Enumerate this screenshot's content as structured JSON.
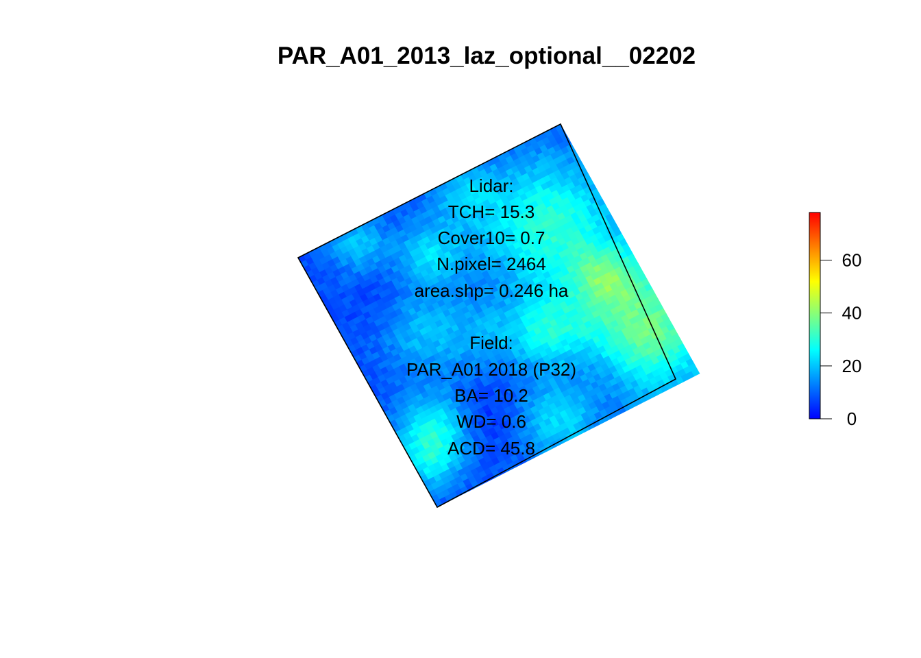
{
  "chart_data": {
    "type": "heatmap",
    "title": "PAR_A01_2013_laz_optional__02202",
    "annotation": {
      "lidar_lines": [
        "Lidar:",
        "TCH= 15.3",
        "Cover10= 0.7",
        "N.pixel= 2464",
        "area.shp= 0.246 ha"
      ],
      "field_lines": [
        "Field:",
        "PAR_A01 2018 (P32)",
        "BA= 10.2",
        "WD= 0.6",
        "ACD= 45.8"
      ]
    },
    "colorbar": {
      "range": [
        0,
        78
      ],
      "ticks": [
        0,
        20,
        40,
        60
      ],
      "tick_labels": [
        "0",
        "20",
        "40",
        "60"
      ],
      "colors": [
        "#0000ff",
        "#0080ff",
        "#00ffff",
        "#80ff80",
        "#ffff00",
        "#ff8000",
        "#ff0000"
      ]
    },
    "raster": {
      "grid_size": 50,
      "background_value": 8,
      "patches": [
        {
          "u": 0.8,
          "v": 0.3,
          "value": 30,
          "radius": 0.17
        },
        {
          "u": 0.92,
          "v": 0.78,
          "value": 37,
          "radius": 0.16
        },
        {
          "u": 0.62,
          "v": 0.62,
          "value": 24,
          "radius": 0.09
        },
        {
          "u": 0.4,
          "v": 0.2,
          "value": 22,
          "radius": 0.08
        },
        {
          "u": 0.2,
          "v": 0.05,
          "value": 20,
          "radius": 0.07
        },
        {
          "u": 0.25,
          "v": 0.43,
          "value": 19,
          "radius": 0.1
        },
        {
          "u": 0.12,
          "v": 0.75,
          "value": 27,
          "radius": 0.09
        },
        {
          "u": 0.05,
          "v": 0.86,
          "value": 20,
          "radius": 0.07
        },
        {
          "u": 0.5,
          "v": 0.92,
          "value": 22,
          "radius": 0.1
        },
        {
          "u": 0.6,
          "v": 0.06,
          "value": 18,
          "radius": 0.08
        },
        {
          "u": 0.42,
          "v": 0.55,
          "value": 16,
          "radius": 0.09
        },
        {
          "u": 0.88,
          "v": 0.55,
          "value": 24,
          "radius": 0.08
        },
        {
          "u": 0.7,
          "v": 0.85,
          "value": 4,
          "radius": 0.08
        },
        {
          "u": 0.3,
          "v": 0.8,
          "value": 3,
          "radius": 0.08
        },
        {
          "u": 0.15,
          "v": 0.28,
          "value": 6,
          "radius": 0.07
        }
      ]
    }
  }
}
